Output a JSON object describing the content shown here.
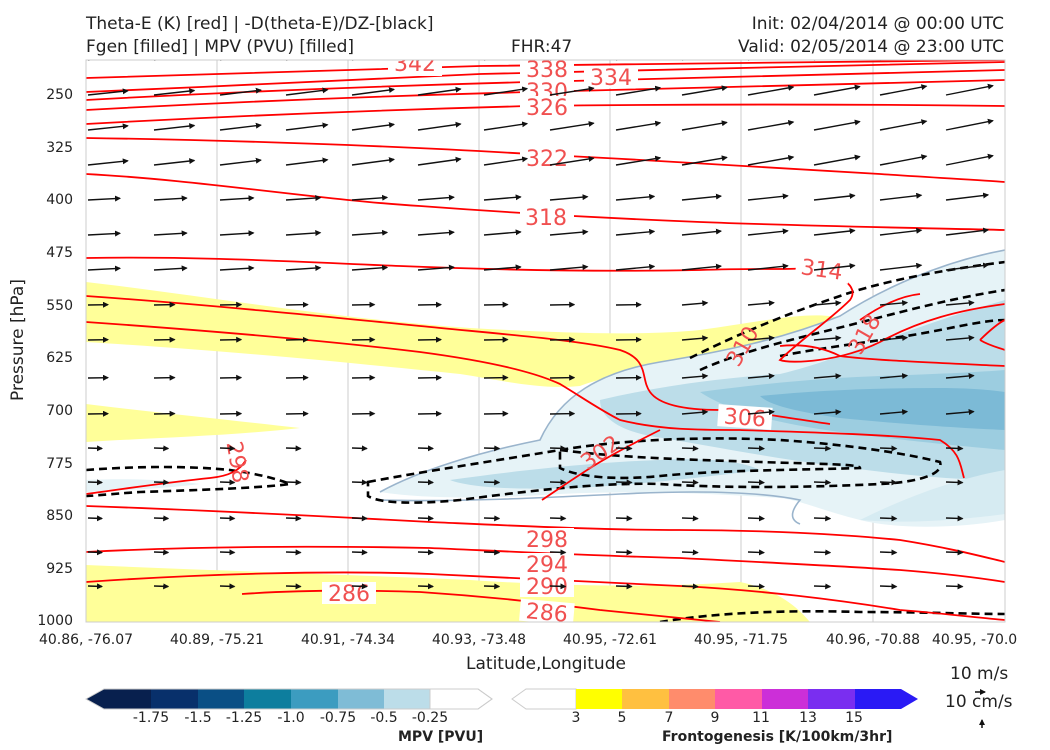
{
  "header": {
    "title_left_1": "Theta-E (K) [red] | -D(theta-E)/DZ-[black]",
    "title_left_2": "Fgen [filled] | MPV (PVU) [filled]",
    "fhr": "FHR:47",
    "init": "Init: 02/04/2014 @ 00:00 UTC",
    "valid": "Valid: 02/05/2014 @ 23:00 UTC"
  },
  "chart_data": {
    "type": "cross-section",
    "xlabel": "Latitude,Longitude",
    "ylabel": "Pressure [hPa]",
    "x_ticks": [
      "40.86, -76.07",
      "40.89, -75.21",
      "40.91, -74.34",
      "40.93, -73.48",
      "40.95, -72.61",
      "40.95, -71.75",
      "40.96, -70.88",
      "40.95, -70.0"
    ],
    "y_ticks": [
      "250",
      "325",
      "400",
      "475",
      "550",
      "625",
      "700",
      "775",
      "850",
      "925",
      "1000"
    ],
    "ylim": [
      200,
      1000
    ],
    "y_scale": "log",
    "theta_e_contours": [
      {
        "label": "342",
        "value": 342
      },
      {
        "label": "338",
        "value": 338
      },
      {
        "label": "334",
        "value": 334
      },
      {
        "label": "330",
        "value": 330
      },
      {
        "label": "326",
        "value": 326
      },
      {
        "label": "322",
        "value": 322
      },
      {
        "label": "318",
        "value": 318
      },
      {
        "label": "314",
        "value": 314
      },
      {
        "label": "310",
        "value": 310
      },
      {
        "label": "318",
        "value": 318
      },
      {
        "label": "306",
        "value": 306
      },
      {
        "label": "302",
        "value": 302
      },
      {
        "label": "298",
        "value": 298
      },
      {
        "label": "298",
        "value": 298
      },
      {
        "label": "294",
        "value": 294
      },
      {
        "label": "290",
        "value": 290
      },
      {
        "label": "286",
        "value": 286
      },
      {
        "label": "286",
        "value": 286
      }
    ],
    "contour_color": "#ff0000",
    "contour_label_color": "#f05050",
    "stability_contour_color": "#000000",
    "mpv_colorbar": {
      "title": "MPV [PVU]",
      "labels": [
        "-1.75",
        "-1.5",
        "-1.25",
        "-1.0",
        "-0.75",
        "-0.5",
        "-0.25"
      ],
      "colors": [
        "#08204e",
        "#08306b",
        "#0a4f85",
        "#0d6e98",
        "#2c8fb5",
        "#6cb2cf",
        "#bcdde9",
        "#ffffff"
      ]
    },
    "fgen_colorbar": {
      "title": "Frontogenesis [K/100km/3hr]",
      "labels": [
        "3",
        "5",
        "7",
        "9",
        "11",
        "13",
        "15"
      ],
      "colors": [
        "#ffffff",
        "#ffff00",
        "#ffc040",
        "#ff8c6c",
        "#ff5aa6",
        "#cc2fd8",
        "#7a2ef0",
        "#2a1af5"
      ]
    },
    "vector_reference": {
      "horizontal": "10 m/s",
      "vertical": "10 cm/s"
    }
  }
}
